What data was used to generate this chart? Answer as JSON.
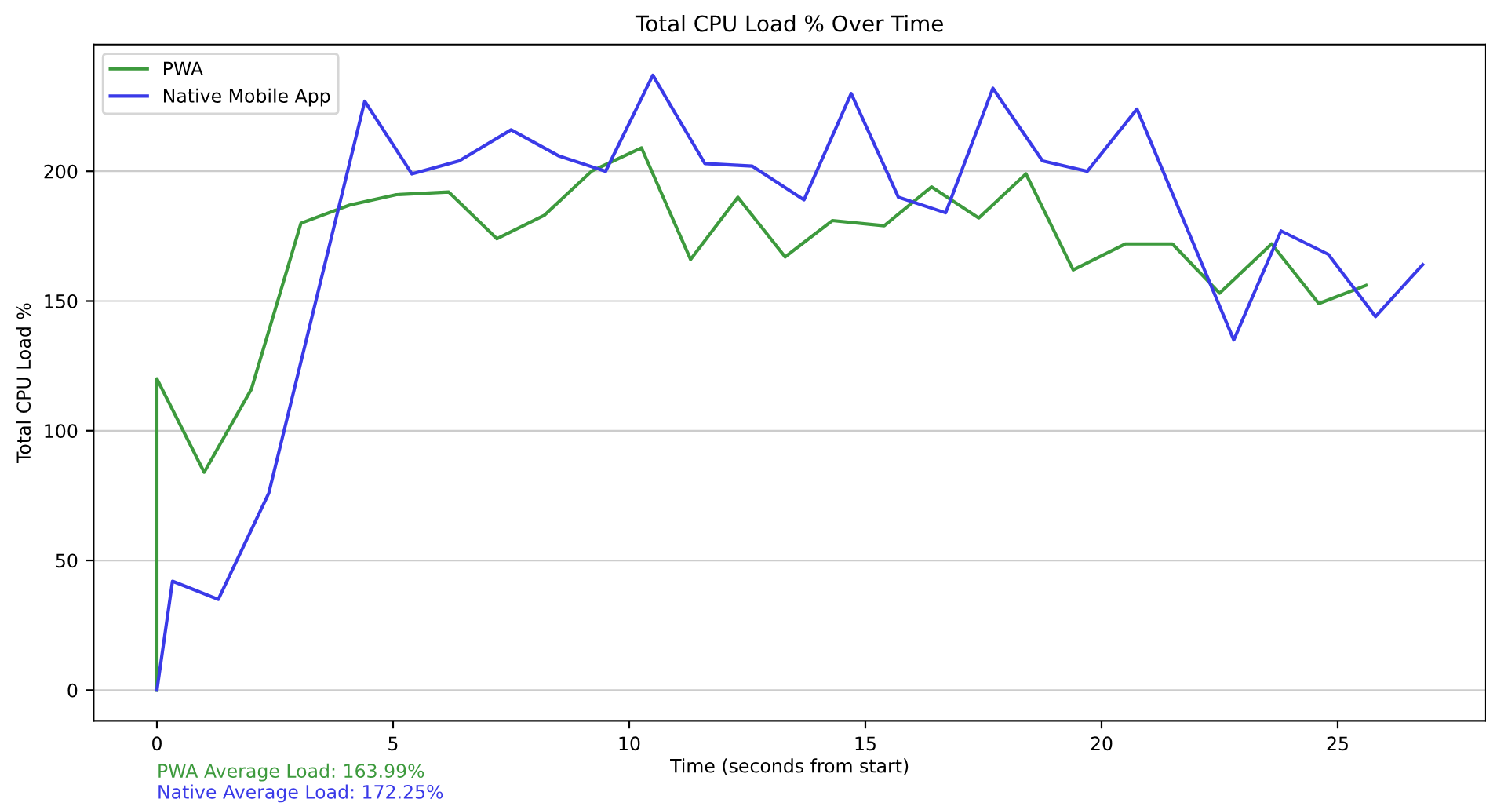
{
  "chart_data": {
    "type": "line",
    "title": "Total CPU Load % Over Time",
    "xlabel": "Time (seconds from start)",
    "ylabel": "Total CPU Load %",
    "series": [
      {
        "name": "PWA",
        "color": "#3d9a3d",
        "x": [
          0,
          0,
          1.0,
          2.0,
          3.05,
          4.08,
          5.07,
          6.18,
          7.2,
          8.2,
          9.2,
          10.26,
          11.3,
          12.3,
          13.3,
          14.3,
          15.4,
          16.4,
          17.4,
          18.4,
          19.4,
          20.5,
          21.5,
          22.5,
          23.6,
          24.6,
          25.6
        ],
        "values": [
          0,
          120,
          84,
          116,
          180,
          187,
          191,
          192,
          174,
          183,
          200,
          209,
          166,
          190,
          167,
          181,
          179,
          194,
          182,
          199,
          162,
          172,
          172,
          153,
          172,
          149,
          156
        ]
      },
      {
        "name": "Native Mobile App",
        "color": "#3a3ae8",
        "x": [
          0,
          0.33,
          1.3,
          2.37,
          4.4,
          5.4,
          6.4,
          7.5,
          8.5,
          9.5,
          10.5,
          11.6,
          12.6,
          13.7,
          14.7,
          15.7,
          16.7,
          17.7,
          18.75,
          19.7,
          20.75,
          22.8,
          23.8,
          24.8,
          25.8,
          26.8
        ],
        "values": [
          0,
          42,
          35,
          76,
          227,
          199,
          204,
          216,
          206,
          200,
          237,
          203,
          202,
          189,
          230,
          190,
          184,
          232,
          204,
          200,
          224,
          135,
          177,
          168,
          144,
          164
        ]
      }
    ],
    "xlim": [
      -1.34,
      28.14
    ],
    "ylim": [
      -11.85,
      248.85
    ],
    "xticks": [
      0,
      5,
      10,
      15,
      20,
      25
    ],
    "yticks": [
      0,
      50,
      100,
      150,
      200
    ],
    "grid": "y",
    "legend": "top left",
    "marker": "none",
    "line_style": "solid",
    "annotations": [
      "PWA Average Load: 163.99%",
      "Native Average Load: 172.25%"
    ]
  }
}
